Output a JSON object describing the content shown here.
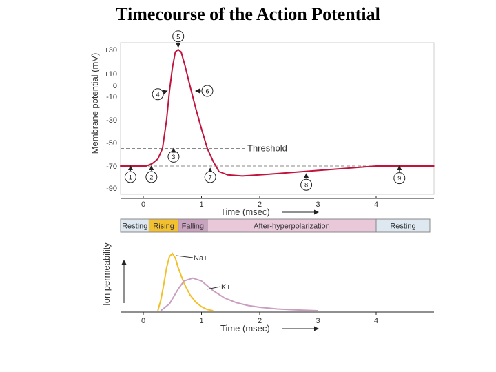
{
  "slide": {
    "title": "Timecourse of the Action Potential"
  },
  "chart_data": [
    {
      "type": "line",
      "name": "membrane-potential",
      "ylabel": "Membrane potential (mV)",
      "xlabel": "Time (msec)",
      "x_ticks": [
        "0",
        "1",
        "2",
        "3",
        "4"
      ],
      "ylim": [
        -90,
        35
      ],
      "xlim": [
        -0.4,
        5.0
      ],
      "y_ticks": [
        {
          "v": 30,
          "label": "+30"
        },
        {
          "v": 10,
          "label": "+10"
        },
        {
          "v": 0,
          "label": "0"
        },
        {
          "v": -10,
          "label": "-10"
        },
        {
          "v": -30,
          "label": "-30"
        },
        {
          "v": -50,
          "label": "-50"
        },
        {
          "v": -70,
          "label": "-70"
        },
        {
          "v": -90,
          "label": "-90"
        }
      ],
      "threshold": {
        "value": -55,
        "label": "Threshold"
      },
      "resting_value": -70,
      "series": [
        {
          "name": "Membrane potential",
          "color": "#c0143c",
          "x": [
            -0.4,
            0.05,
            0.15,
            0.25,
            0.33,
            0.4,
            0.45,
            0.5,
            0.55,
            0.6,
            0.65,
            0.72,
            0.8,
            0.9,
            1.0,
            1.1,
            1.2,
            1.3,
            1.45,
            1.7,
            2.0,
            2.5,
            3.0,
            3.5,
            4.0,
            4.5,
            5.0
          ],
          "y": [
            -70,
            -70,
            -68,
            -64,
            -55,
            -30,
            -5,
            15,
            28,
            30,
            28,
            16,
            0,
            -20,
            -38,
            -55,
            -66,
            -75,
            -78,
            -79,
            -78,
            -76,
            -74,
            -72,
            -70,
            -70,
            -70
          ]
        }
      ],
      "callouts": [
        {
          "label": "1",
          "x": -0.22,
          "v": -80,
          "arrow_v": -70
        },
        {
          "label": "2",
          "x": 0.14,
          "v": -80,
          "arrow_v": -70
        },
        {
          "label": "3",
          "x": 0.52,
          "v": -62,
          "arrow_v": -55
        },
        {
          "label": "4",
          "x": 0.25,
          "v": -8,
          "arrow_x": 0.41,
          "arrow_v": -5
        },
        {
          "label": "5",
          "x": 0.6,
          "v": 41,
          "arrow_v": 32
        },
        {
          "label": "6",
          "x": 1.1,
          "v": -5,
          "arrow_x": 0.9,
          "arrow_v": -5
        },
        {
          "label": "7",
          "x": 1.15,
          "v": -80,
          "arrow_v": -72
        },
        {
          "label": "8",
          "x": 2.8,
          "v": -87,
          "arrow_v": -77
        },
        {
          "label": "9",
          "x": 4.4,
          "v": -81,
          "arrow_v": -70
        }
      ]
    },
    {
      "type": "table",
      "name": "phase-bar",
      "phases": [
        {
          "label": "Resting",
          "from": -0.4,
          "to": 0.1,
          "color": "#dde8f0"
        },
        {
          "label": "Rising",
          "from": 0.1,
          "to": 0.6,
          "color": "#f3c030"
        },
        {
          "label": "Falling",
          "from": 0.6,
          "to": 1.1,
          "color": "#c9a3bf"
        },
        {
          "label": "After-hyperpolarization",
          "from": 1.1,
          "to": 4.0,
          "color": "#e9c8da"
        },
        {
          "label": "Resting",
          "from": 4.0,
          "to": 5.0,
          "color": "#dde8f0"
        }
      ]
    },
    {
      "type": "line",
      "name": "ion-permeability",
      "ylabel": "Ion permeability",
      "xlabel": "Time (msec)",
      "x_ticks": [
        "0",
        "1",
        "2",
        "3",
        "4"
      ],
      "xlim": [
        -0.4,
        5.0
      ],
      "ylim": [
        0,
        1
      ],
      "series": [
        {
          "name": "Na+",
          "color": "#f2c028",
          "x": [
            0.25,
            0.3,
            0.35,
            0.4,
            0.45,
            0.5,
            0.55,
            0.6,
            0.7,
            0.8,
            0.9,
            1.0,
            1.1,
            1.2
          ],
          "y": [
            0.0,
            0.18,
            0.45,
            0.75,
            0.95,
            1.0,
            0.92,
            0.75,
            0.48,
            0.28,
            0.15,
            0.07,
            0.02,
            0.0
          ]
        },
        {
          "name": "K+",
          "color": "#c99ec0",
          "x": [
            0.3,
            0.45,
            0.6,
            0.7,
            0.85,
            1.0,
            1.2,
            1.4,
            1.6,
            1.8,
            2.0,
            2.3,
            2.6,
            3.0
          ],
          "y": [
            0.0,
            0.12,
            0.38,
            0.52,
            0.57,
            0.52,
            0.35,
            0.22,
            0.14,
            0.09,
            0.06,
            0.03,
            0.015,
            0.0
          ]
        }
      ],
      "labels": {
        "na": "Na+",
        "k": "K+"
      }
    }
  ]
}
